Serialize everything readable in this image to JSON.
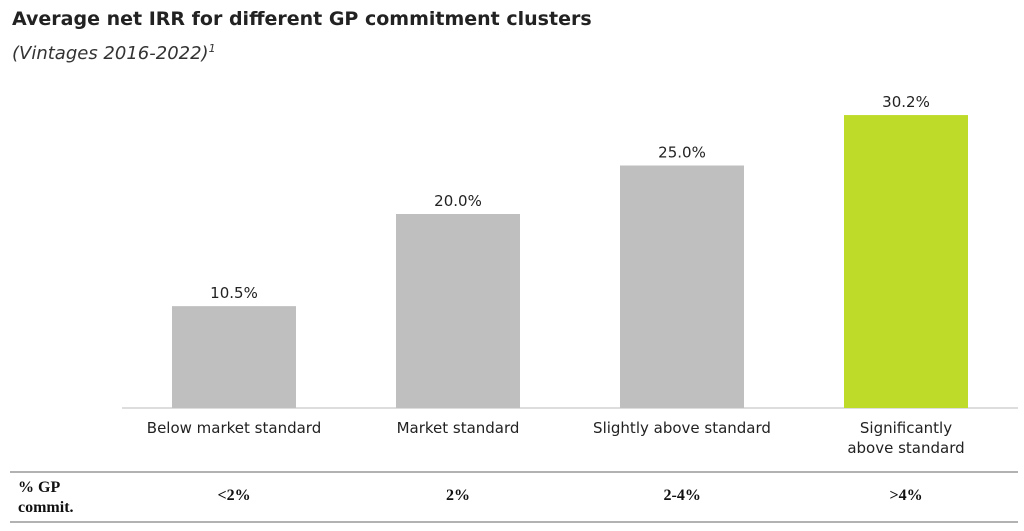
{
  "chart_data": {
    "type": "bar",
    "title": "Average net IRR for different GP commitment clusters",
    "subtitle": "(Vintages 2016-2022)",
    "subtitle_note": "1",
    "categories": [
      "Below market standard",
      "Market standard",
      "Slightly above standard",
      "Significantly above standard"
    ],
    "values": [
      10.5,
      20.0,
      25.0,
      30.2
    ],
    "value_labels": [
      "10.5%",
      "20.0%",
      "25.0%",
      "30.2%"
    ],
    "colors": [
      "#bfbfbf",
      "#bfbfbf",
      "#bfbfbf",
      "#bedb2a"
    ]
  },
  "table": {
    "header": "% GP commit.",
    "cells": [
      "<2%",
      "2%",
      "2-4%",
      ">4%"
    ]
  }
}
